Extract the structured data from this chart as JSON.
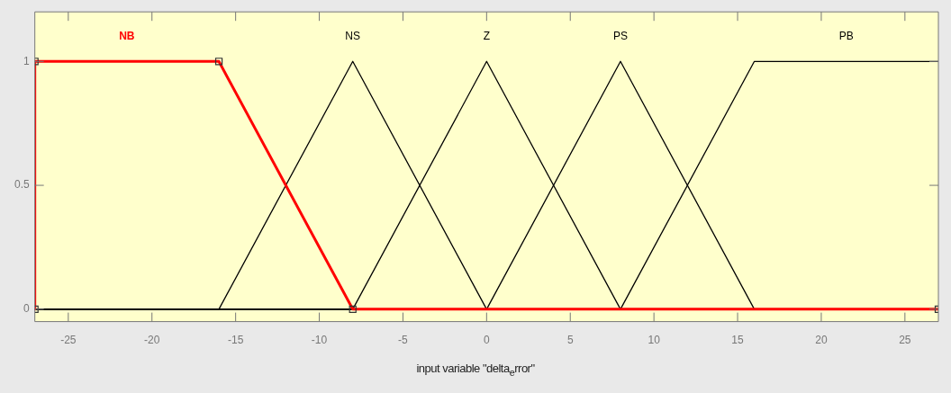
{
  "chart_data": {
    "type": "line",
    "xlabel": "input variable \"delta$_{e}$rror\"",
    "xlim": [
      -27,
      27
    ],
    "ylim": [
      -0.05,
      1.2
    ],
    "xticks": [
      -25,
      -20,
      -15,
      -10,
      -5,
      0,
      5,
      10,
      15,
      20,
      25
    ],
    "yticks": [
      0,
      0.5,
      1
    ],
    "grid": false,
    "legend": false,
    "line_style": "solid",
    "marker": "none",
    "series": [
      {
        "name": "NB",
        "color": "#ff0000",
        "marker": "square",
        "x": [
          -27,
          -27,
          -16,
          -8,
          27
        ],
        "values": [
          0,
          1,
          1,
          0,
          0
        ]
      },
      {
        "name": "NS",
        "color": "#000000",
        "x": [
          -27,
          -16,
          -8,
          0,
          27
        ],
        "values": [
          0,
          0,
          1,
          0,
          0
        ]
      },
      {
        "name": "Z",
        "color": "#000000",
        "x": [
          -27,
          -8,
          0,
          8,
          27
        ],
        "values": [
          0,
          0,
          1,
          0,
          0
        ]
      },
      {
        "name": "PS",
        "color": "#000000",
        "x": [
          -27,
          0,
          8,
          16,
          27
        ],
        "values": [
          0,
          0,
          1,
          0,
          0
        ]
      },
      {
        "name": "PB",
        "color": "#000000",
        "x": [
          -27,
          8,
          16,
          27
        ],
        "values": [
          0,
          0,
          1,
          1
        ]
      }
    ]
  }
}
